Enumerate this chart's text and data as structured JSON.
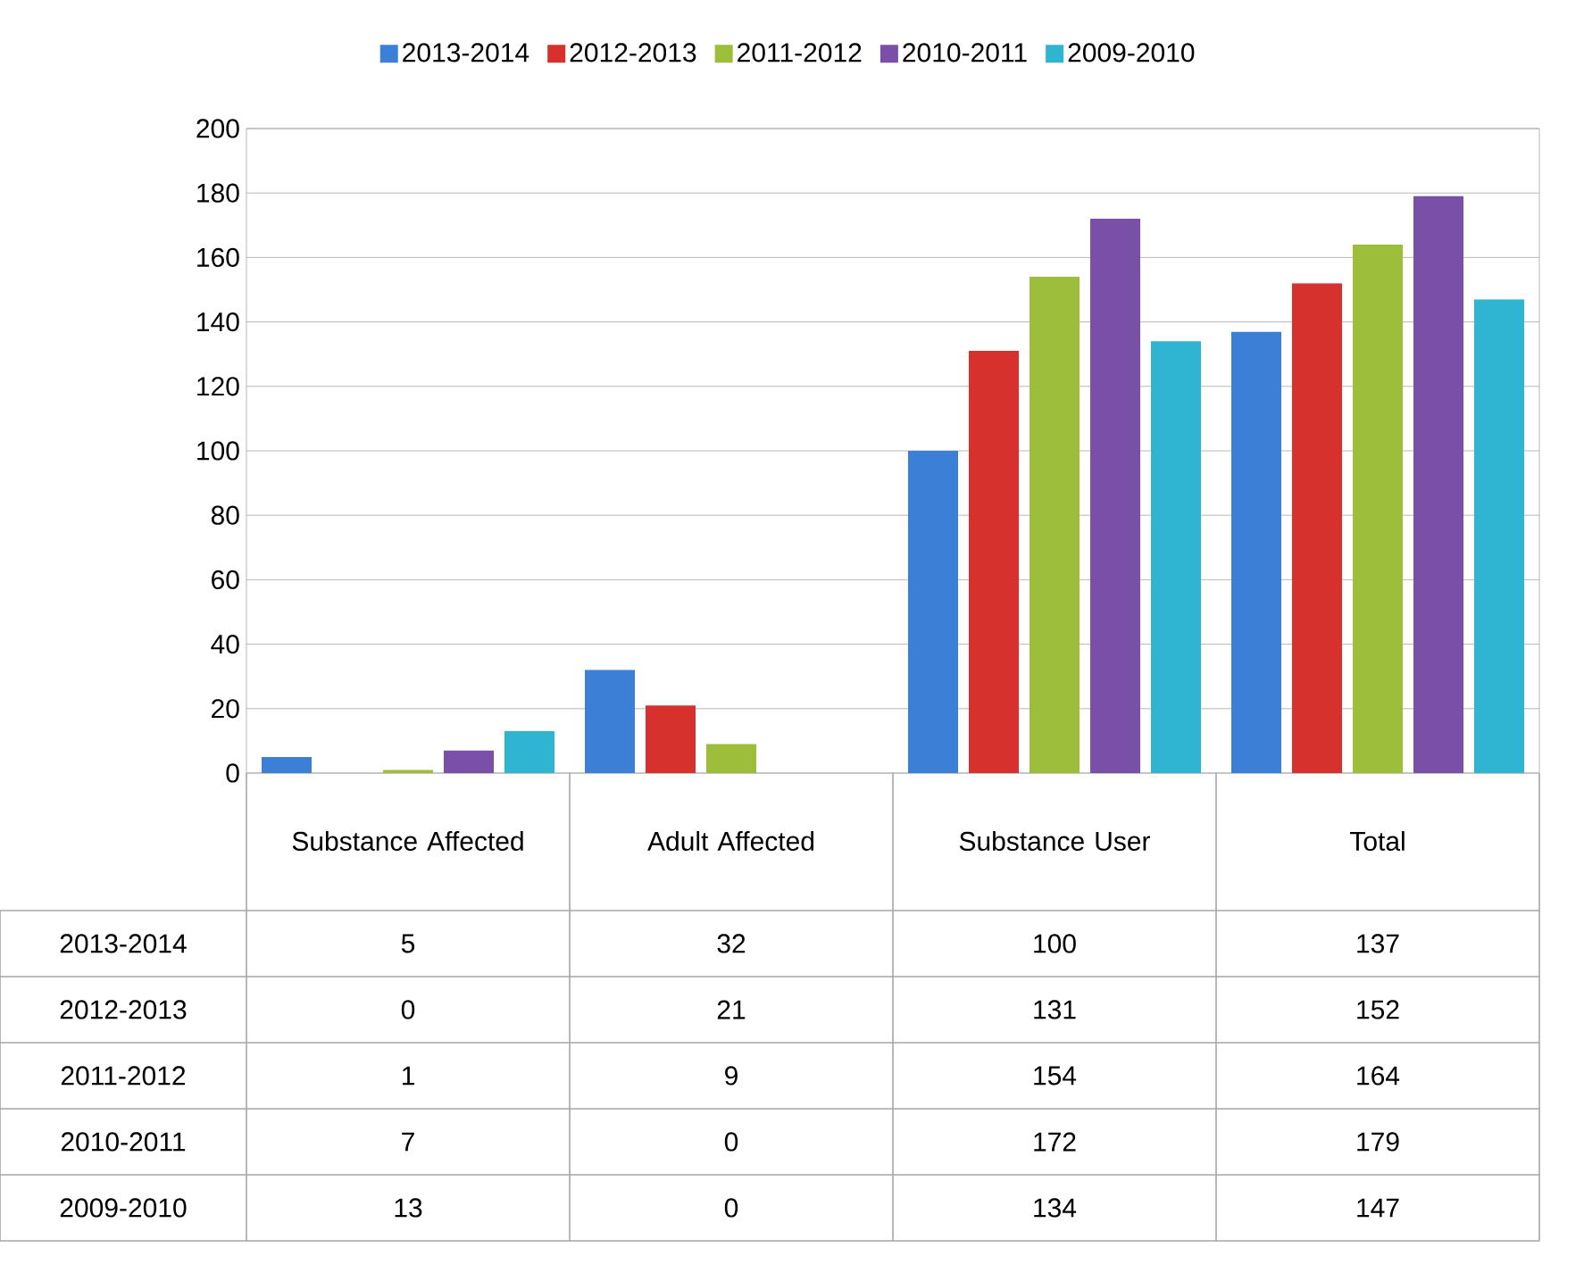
{
  "chart_data": {
    "type": "bar",
    "categories": [
      "Substance Affected",
      "Adult Affected",
      "Substance User",
      "Total"
    ],
    "series": [
      {
        "name": "2013-2014",
        "color": "#3c7fd6",
        "values": [
          5,
          32,
          100,
          137
        ]
      },
      {
        "name": "2012-2013",
        "color": "#d6312c",
        "values": [
          0,
          21,
          131,
          152
        ]
      },
      {
        "name": "2011-2012",
        "color": "#9cbe3a",
        "values": [
          1,
          9,
          154,
          164
        ]
      },
      {
        "name": "2010-2011",
        "color": "#7a4fa8",
        "values": [
          7,
          0,
          172,
          179
        ]
      },
      {
        "name": "2009-2010",
        "color": "#2fb4d2",
        "values": [
          13,
          0,
          134,
          147
        ]
      }
    ],
    "ylim": [
      0,
      200
    ],
    "yticks": [
      0,
      20,
      40,
      60,
      80,
      100,
      120,
      140,
      160,
      180,
      200
    ],
    "grid": "y",
    "legend": "top",
    "data_labels": true
  }
}
